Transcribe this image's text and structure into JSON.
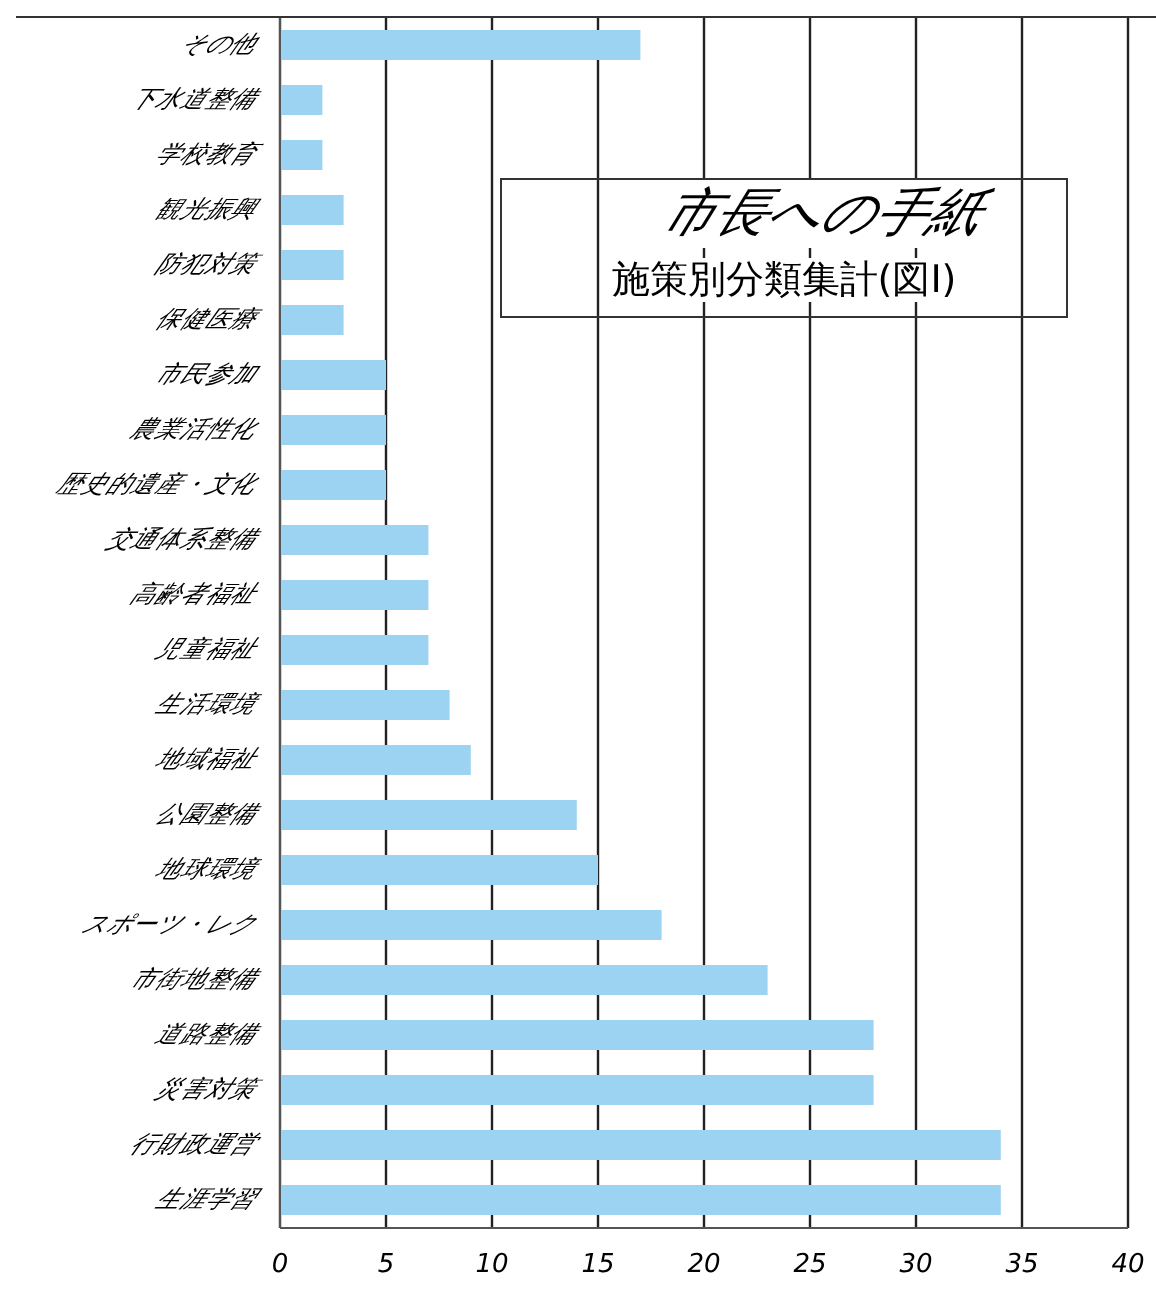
{
  "chart_data": {
    "type": "bar",
    "orientation": "horizontal",
    "title": "市長への手紙",
    "subtitle": "施策別分類集計(図Ⅰ)",
    "categories": [
      "その他",
      "下水道整備",
      "学校教育",
      "観光振興",
      "防犯対策",
      "保健医療",
      "市民参加",
      "農業活性化",
      "歴史的遺産・文化",
      "交通体系整備",
      "高齢者福祉",
      "児童福祉",
      "生活環境",
      "地域福祉",
      "公園整備",
      "地球環境",
      "スポーツ・レク",
      "市街地整備",
      "道路整備",
      "災害対策",
      "行財政運営",
      "生涯学習"
    ],
    "values": [
      17,
      2,
      2,
      3,
      3,
      3,
      5,
      5,
      5,
      7,
      7,
      7,
      8,
      9,
      14,
      15,
      18,
      23,
      28,
      28,
      34,
      34
    ],
    "color": "#9dd3f2",
    "xlim": [
      0,
      40
    ],
    "xticks": [
      0,
      5,
      10,
      15,
      20,
      25,
      30,
      35,
      40
    ],
    "grid": "x"
  }
}
